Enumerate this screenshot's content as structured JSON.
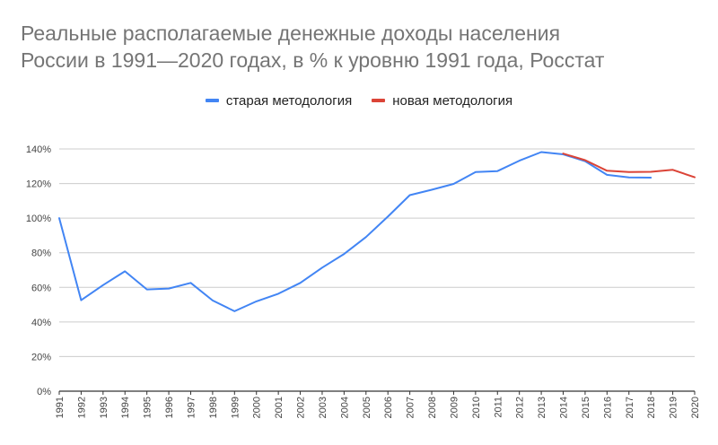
{
  "chart_data": {
    "type": "line",
    "title": "Реальные располагаемые денежные доходы населения России в 1991—2020 годах, в % к уровню 1991 года, Росстат",
    "title_lines": [
      "Реальные располагаемые денежные доходы населения",
      "России в 1991—2020 годах, в % к уровню 1991 года, Росстат"
    ],
    "xlabel": "",
    "ylabel": "",
    "x": [
      1991,
      1992,
      1993,
      1994,
      1995,
      1996,
      1997,
      1998,
      1999,
      2000,
      2001,
      2002,
      2003,
      2004,
      2005,
      2006,
      2007,
      2008,
      2009,
      2010,
      2011,
      2012,
      2013,
      2014,
      2015,
      2016,
      2017,
      2018,
      2019,
      2020
    ],
    "ylim": [
      0,
      140
    ],
    "y_ticks": [
      0,
      20,
      40,
      60,
      80,
      100,
      120,
      140
    ],
    "y_tick_labels": [
      "0%",
      "20%",
      "40%",
      "60%",
      "80%",
      "100%",
      "120%",
      "140%"
    ],
    "grid": true,
    "legend_position": "top",
    "series": [
      {
        "name": "старая методология",
        "color": "#4285f4",
        "x": [
          1991,
          1992,
          1993,
          1994,
          1995,
          1996,
          1997,
          1998,
          1999,
          2000,
          2001,
          2002,
          2003,
          2004,
          2005,
          2006,
          2007,
          2008,
          2009,
          2010,
          2011,
          2012,
          2013,
          2014,
          2015,
          2016,
          2017,
          2018
        ],
        "values": [
          100,
          52.6,
          61.3,
          69.3,
          58.8,
          59.3,
          62.6,
          52.4,
          46.2,
          51.9,
          56.3,
          62.6,
          71.4,
          79.3,
          89.1,
          100.9,
          113.3,
          116.4,
          119.8,
          126.6,
          127.2,
          133.2,
          138.2,
          136.9,
          132.9,
          125,
          123.5,
          123.4
        ]
      },
      {
        "name": "новая методология",
        "color": "#db4437",
        "x": [
          2014,
          2015,
          2016,
          2017,
          2018,
          2019,
          2020
        ],
        "values": [
          137.3,
          133.5,
          127.4,
          126.7,
          126.8,
          127.9,
          123.6
        ]
      }
    ]
  }
}
